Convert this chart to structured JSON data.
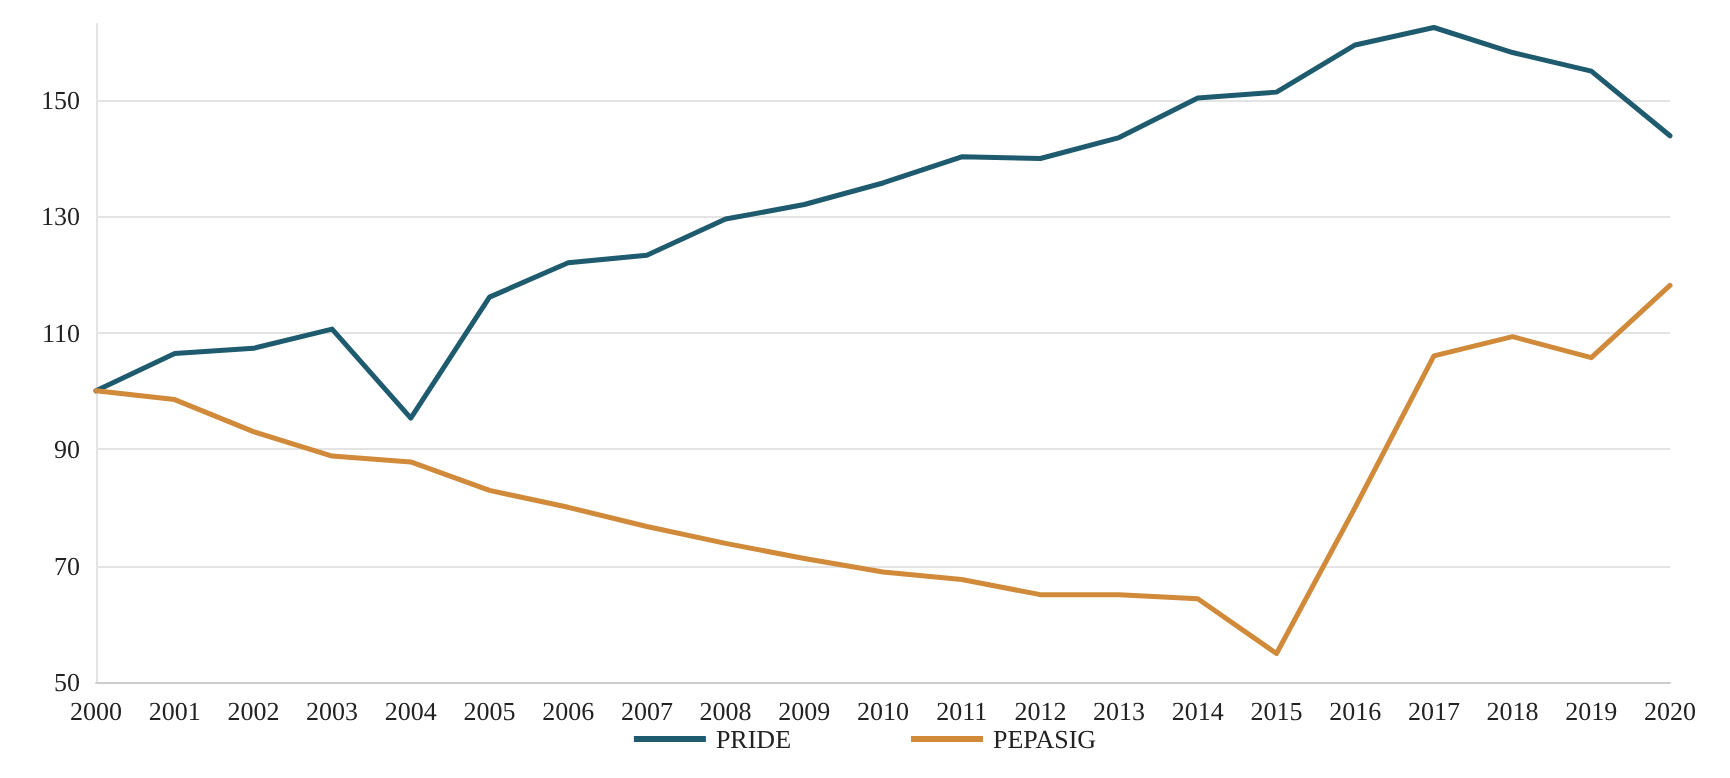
{
  "chart_data": {
    "type": "line",
    "categories": [
      "2000",
      "2001",
      "2002",
      "2003",
      "2004",
      "2005",
      "2006",
      "2007",
      "2008",
      "2009",
      "2010",
      "2011",
      "2012",
      "2013",
      "2014",
      "2015",
      "2016",
      "2017",
      "2018",
      "2019",
      "2020"
    ],
    "series": [
      {
        "name": "PRIDE",
        "color": "#1f5b6e",
        "values": [
          100,
          106.4,
          107.3,
          110.6,
          95.3,
          116.1,
          122,
          123.3,
          129.5,
          132,
          135.7,
          140.2,
          139.9,
          143.5,
          150.3,
          151.3,
          159.4,
          162.4,
          158.1,
          154.9,
          143.8
        ]
      },
      {
        "name": "PEPASIG",
        "color": "#d08a3a",
        "values": [
          100,
          98.5,
          93,
          88.8,
          87.8,
          82.9,
          80,
          76.7,
          73.8,
          71.2,
          68.9,
          67.6,
          65,
          65,
          64.3,
          54.9,
          80,
          106,
          109.3,
          105.7,
          118.1
        ]
      }
    ],
    "ylim": [
      50,
      163
    ],
    "yticks": [
      50,
      70,
      90,
      110,
      130,
      150
    ],
    "grid": "y",
    "legend": "bottom",
    "marker": "none",
    "line_style": "solid"
  }
}
